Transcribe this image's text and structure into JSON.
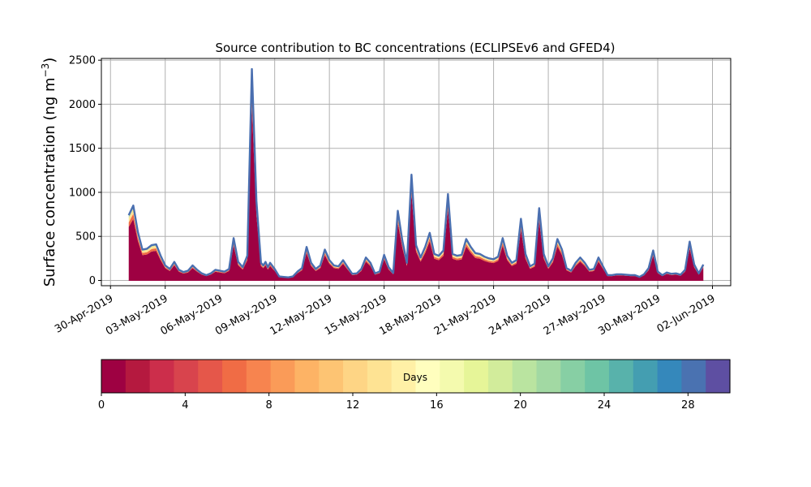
{
  "chart_data": {
    "type": "area",
    "title": "Source contribution to BC concentrations (ECLIPSEv6 and GFED4)",
    "xlabel": "",
    "ylabel": "Surface concentration (ng m",
    "ylabel_sup": "−3",
    "ylabel_close": ")",
    "ylim": [
      -60,
      2520
    ],
    "yticks": [
      0,
      500,
      1000,
      1500,
      2000,
      2500
    ],
    "xlim": [
      "2019-04-29T12:00",
      "2019-06-03T00:00"
    ],
    "xticks": [
      {
        "date": "2019-04-30",
        "label": "30-Apr-2019"
      },
      {
        "date": "2019-05-03",
        "label": "03-May-2019"
      },
      {
        "date": "2019-05-06",
        "label": "06-May-2019"
      },
      {
        "date": "2019-05-09",
        "label": "09-May-2019"
      },
      {
        "date": "2019-05-12",
        "label": "12-May-2019"
      },
      {
        "date": "2019-05-15",
        "label": "15-May-2019"
      },
      {
        "date": "2019-05-18",
        "label": "18-May-2019"
      },
      {
        "date": "2019-05-21",
        "label": "21-May-2019"
      },
      {
        "date": "2019-05-24",
        "label": "24-May-2019"
      },
      {
        "date": "2019-05-27",
        "label": "27-May-2019"
      },
      {
        "date": "2019-05-30",
        "label": "30-May-2019"
      },
      {
        "date": "2019-06-02",
        "label": "02-Jun-2019"
      }
    ],
    "grid": true,
    "series": [
      {
        "x": [
          "2019-05-01T00:00",
          "2019-05-01T06:00",
          "2019-05-01T12:00",
          "2019-05-01T18:00",
          "2019-05-02T00:00",
          "2019-05-02T06:00",
          "2019-05-02T12:00",
          "2019-05-02T18:00",
          "2019-05-03T00:00",
          "2019-05-03T06:00",
          "2019-05-03T12:00",
          "2019-05-03T18:00",
          "2019-05-04T00:00",
          "2019-05-04T06:00",
          "2019-05-04T12:00",
          "2019-05-04T18:00",
          "2019-05-05T00:00",
          "2019-05-05T06:00",
          "2019-05-05T12:00",
          "2019-05-05T18:00",
          "2019-05-06T00:00",
          "2019-05-06T06:00",
          "2019-05-06T12:00",
          "2019-05-06T18:00",
          "2019-05-07T00:00",
          "2019-05-07T06:00",
          "2019-05-07T12:00",
          "2019-05-07T18:00",
          "2019-05-08T00:00",
          "2019-05-08T06:00",
          "2019-05-08T09:00",
          "2019-05-08T12:00",
          "2019-05-08T15:00",
          "2019-05-08T18:00",
          "2019-05-09T00:00",
          "2019-05-09T06:00",
          "2019-05-09T12:00",
          "2019-05-09T18:00",
          "2019-05-10T00:00",
          "2019-05-10T06:00",
          "2019-05-10T12:00",
          "2019-05-10T18:00",
          "2019-05-11T00:00",
          "2019-05-11T06:00",
          "2019-05-11T12:00",
          "2019-05-11T18:00",
          "2019-05-12T00:00",
          "2019-05-12T06:00",
          "2019-05-12T12:00",
          "2019-05-12T18:00",
          "2019-05-13T00:00",
          "2019-05-13T06:00",
          "2019-05-13T12:00",
          "2019-05-13T18:00",
          "2019-05-14T00:00",
          "2019-05-14T06:00",
          "2019-05-14T12:00",
          "2019-05-14T18:00",
          "2019-05-15T00:00",
          "2019-05-15T06:00",
          "2019-05-15T12:00",
          "2019-05-15T18:00",
          "2019-05-16T00:00",
          "2019-05-16T06:00",
          "2019-05-16T12:00",
          "2019-05-16T18:00",
          "2019-05-17T00:00",
          "2019-05-17T06:00",
          "2019-05-17T12:00",
          "2019-05-17T18:00",
          "2019-05-18T00:00",
          "2019-05-18T06:00",
          "2019-05-18T12:00",
          "2019-05-18T18:00",
          "2019-05-19T00:00",
          "2019-05-19T06:00",
          "2019-05-19T12:00",
          "2019-05-19T18:00",
          "2019-05-20T00:00",
          "2019-05-20T06:00",
          "2019-05-20T12:00",
          "2019-05-20T18:00",
          "2019-05-21T00:00",
          "2019-05-21T06:00",
          "2019-05-21T12:00",
          "2019-05-21T18:00",
          "2019-05-22T00:00",
          "2019-05-22T06:00",
          "2019-05-22T12:00",
          "2019-05-22T18:00",
          "2019-05-23T00:00",
          "2019-05-23T06:00",
          "2019-05-23T12:00",
          "2019-05-23T18:00",
          "2019-05-24T00:00",
          "2019-05-24T06:00",
          "2019-05-24T12:00",
          "2019-05-24T18:00",
          "2019-05-25T00:00",
          "2019-05-25T06:00",
          "2019-05-25T12:00",
          "2019-05-25T18:00",
          "2019-05-26T00:00",
          "2019-05-26T06:00",
          "2019-05-26T12:00",
          "2019-05-26T18:00",
          "2019-05-27T00:00",
          "2019-05-27T06:00",
          "2019-05-27T12:00",
          "2019-05-27T18:00",
          "2019-05-28T00:00",
          "2019-05-28T06:00",
          "2019-05-28T12:00",
          "2019-05-28T18:00",
          "2019-05-29T00:00",
          "2019-05-29T06:00",
          "2019-05-29T12:00",
          "2019-05-29T18:00",
          "2019-05-30T00:00",
          "2019-05-30T06:00",
          "2019-05-30T12:00",
          "2019-05-30T18:00",
          "2019-05-31T00:00",
          "2019-05-31T06:00",
          "2019-05-31T12:00",
          "2019-05-31T18:00",
          "2019-06-01T00:00",
          "2019-06-01T06:00",
          "2019-06-01T12:00"
        ],
        "total": [
          740,
          850,
          550,
          350,
          360,
          400,
          410,
          280,
          170,
          130,
          210,
          120,
          95,
          110,
          170,
          120,
          80,
          60,
          80,
          120,
          110,
          100,
          130,
          480,
          210,
          150,
          280,
          2400,
          900,
          200,
          170,
          210,
          150,
          200,
          130,
          45,
          40,
          35,
          45,
          100,
          140,
          380,
          200,
          130,
          170,
          350,
          230,
          170,
          160,
          230,
          150,
          75,
          80,
          130,
          260,
          200,
          80,
          100,
          290,
          150,
          85,
          790,
          450,
          200,
          1200,
          400,
          260,
          380,
          540,
          300,
          280,
          340,
          980,
          300,
          280,
          290,
          470,
          380,
          310,
          300,
          270,
          250,
          240,
          270,
          480,
          280,
          200,
          230,
          700,
          300,
          160,
          190,
          820,
          300,
          160,
          250,
          470,
          350,
          140,
          110,
          200,
          260,
          200,
          120,
          130,
          260,
          160,
          60,
          60,
          70,
          70,
          65,
          60,
          60,
          40,
          70,
          140,
          340,
          100,
          60,
          90,
          75,
          80,
          65,
          120,
          440,
          180,
          80,
          180,
          320
        ],
        "red_fraction": 0.82
      }
    ],
    "colorbar": {
      "label": "Days",
      "range": [
        0,
        30
      ],
      "ticks": [
        0,
        4,
        8,
        12,
        16,
        20,
        24,
        28
      ],
      "colors": [
        "#9e0142",
        "#b5193f",
        "#cc2e4b",
        "#d8444d",
        "#e5574a",
        "#f06c45",
        "#f7844f",
        "#fa9b58",
        "#fdb365",
        "#fdc473",
        "#fed585",
        "#fee393",
        "#fff0a6",
        "#fffebe",
        "#f4faae",
        "#e6f598",
        "#d2ec9b",
        "#bae4a0",
        "#a2d9a3",
        "#87cfa4",
        "#6ec4a5",
        "#58b2ab",
        "#449eb1",
        "#3588bb",
        "#4a72b1",
        "#5e4fa2"
      ]
    }
  }
}
